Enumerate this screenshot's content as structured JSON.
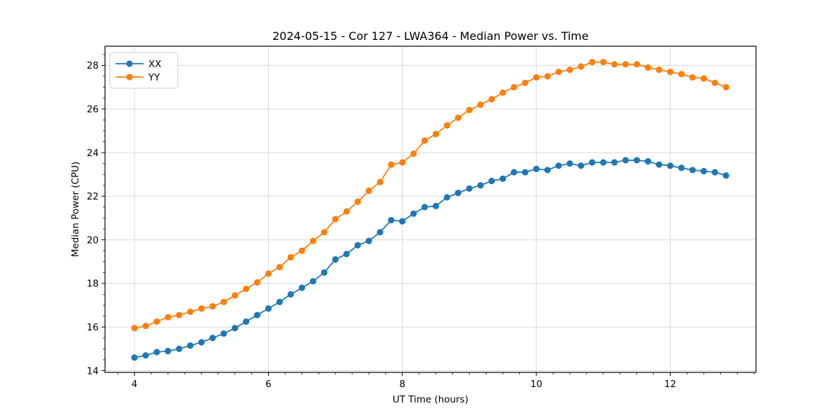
{
  "chart_data": {
    "type": "line",
    "title": "2024-05-15 - Cor 127 - LWA364 - Median Power vs. Time",
    "xlabel": "UT Time (hours)",
    "ylabel": "Median Power (CPU)",
    "xlim": [
      3.56,
      13.28
    ],
    "ylim": [
      13.92,
      28.88
    ],
    "xticks": [
      4,
      6,
      8,
      10,
      12
    ],
    "yticks": [
      14,
      16,
      18,
      20,
      22,
      24,
      26,
      28
    ],
    "x_minor_step": 0.25,
    "y_minor_step": 0.5,
    "grid": true,
    "legend_position": "upper left",
    "legend_labels": [
      "XX",
      "YY"
    ],
    "x": [
      4.0,
      4.167,
      4.333,
      4.5,
      4.667,
      4.833,
      5.0,
      5.167,
      5.333,
      5.5,
      5.667,
      5.833,
      6.0,
      6.167,
      6.333,
      6.5,
      6.667,
      6.833,
      7.0,
      7.167,
      7.333,
      7.5,
      7.667,
      7.833,
      8.0,
      8.167,
      8.333,
      8.5,
      8.667,
      8.833,
      9.0,
      9.167,
      9.333,
      9.5,
      9.667,
      9.833,
      10.0,
      10.167,
      10.333,
      10.5,
      10.667,
      10.833,
      11.0,
      11.167,
      11.333,
      11.5,
      11.667,
      11.833,
      12.0,
      12.167,
      12.333,
      12.5,
      12.667,
      12.833
    ],
    "series": [
      {
        "name": "XX",
        "color": "#1f77b4",
        "values": [
          14.6,
          14.7,
          14.85,
          14.9,
          15.0,
          15.15,
          15.3,
          15.5,
          15.7,
          15.95,
          16.25,
          16.55,
          16.85,
          17.15,
          17.5,
          17.8,
          18.1,
          18.5,
          19.1,
          19.35,
          19.75,
          19.95,
          20.35,
          20.9,
          20.85,
          21.2,
          21.5,
          21.55,
          21.95,
          22.15,
          22.35,
          22.5,
          22.7,
          22.8,
          23.1,
          23.1,
          23.25,
          23.2,
          23.4,
          23.5,
          23.4,
          23.55,
          23.55,
          23.55,
          23.65,
          23.65,
          23.6,
          23.45,
          23.4,
          23.3,
          23.2,
          23.15,
          23.1,
          22.95
        ]
      },
      {
        "name": "YY",
        "color": "#ff7f0e",
        "values": [
          15.95,
          16.05,
          16.25,
          16.45,
          16.55,
          16.7,
          16.85,
          16.95,
          17.15,
          17.45,
          17.75,
          18.05,
          18.45,
          18.75,
          19.2,
          19.5,
          19.95,
          20.35,
          20.95,
          21.3,
          21.75,
          22.25,
          22.65,
          23.45,
          23.55,
          23.95,
          24.55,
          24.85,
          25.25,
          25.6,
          25.95,
          26.2,
          26.45,
          26.75,
          27.0,
          27.2,
          27.45,
          27.5,
          27.7,
          27.8,
          27.95,
          28.15,
          28.15,
          28.05,
          28.05,
          28.05,
          27.9,
          27.8,
          27.7,
          27.6,
          27.45,
          27.4,
          27.2,
          27.0
        ]
      }
    ],
    "colors": {
      "background": "#ffffff",
      "grid": "#d9d9d9",
      "spine": "#000000",
      "text": "#000000"
    },
    "marker": "circle",
    "marker_radius": 4.6,
    "line_width": 1.8
  }
}
